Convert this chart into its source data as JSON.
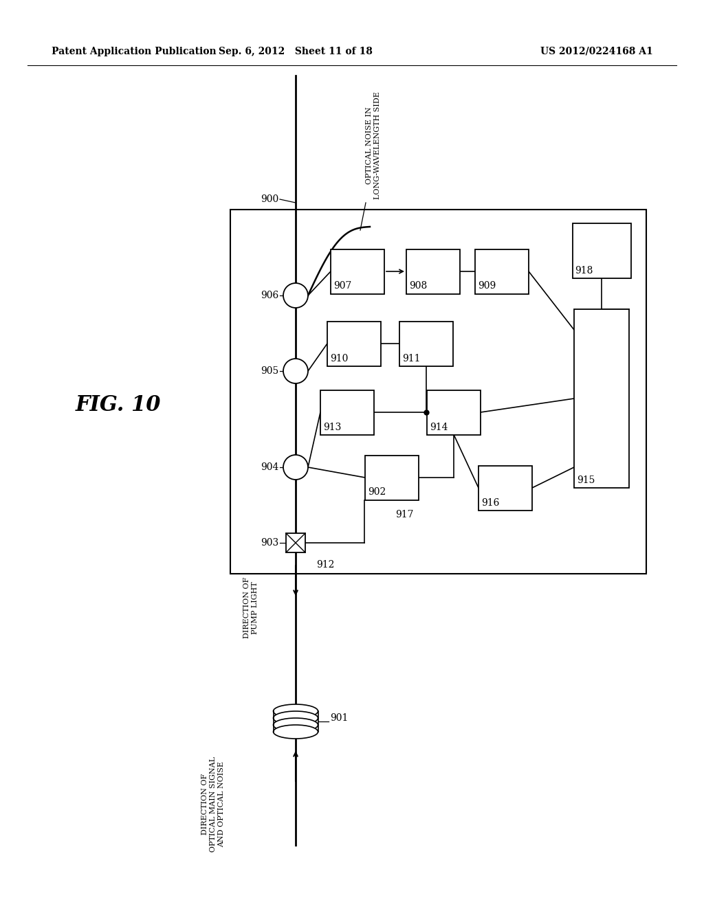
{
  "bg_color": "#ffffff",
  "header_left": "Patent Application Publication",
  "header_mid": "Sep. 6, 2012   Sheet 11 of 18",
  "header_right": "US 2012/0224168 A1",
  "fig_label": "FIG. 10"
}
